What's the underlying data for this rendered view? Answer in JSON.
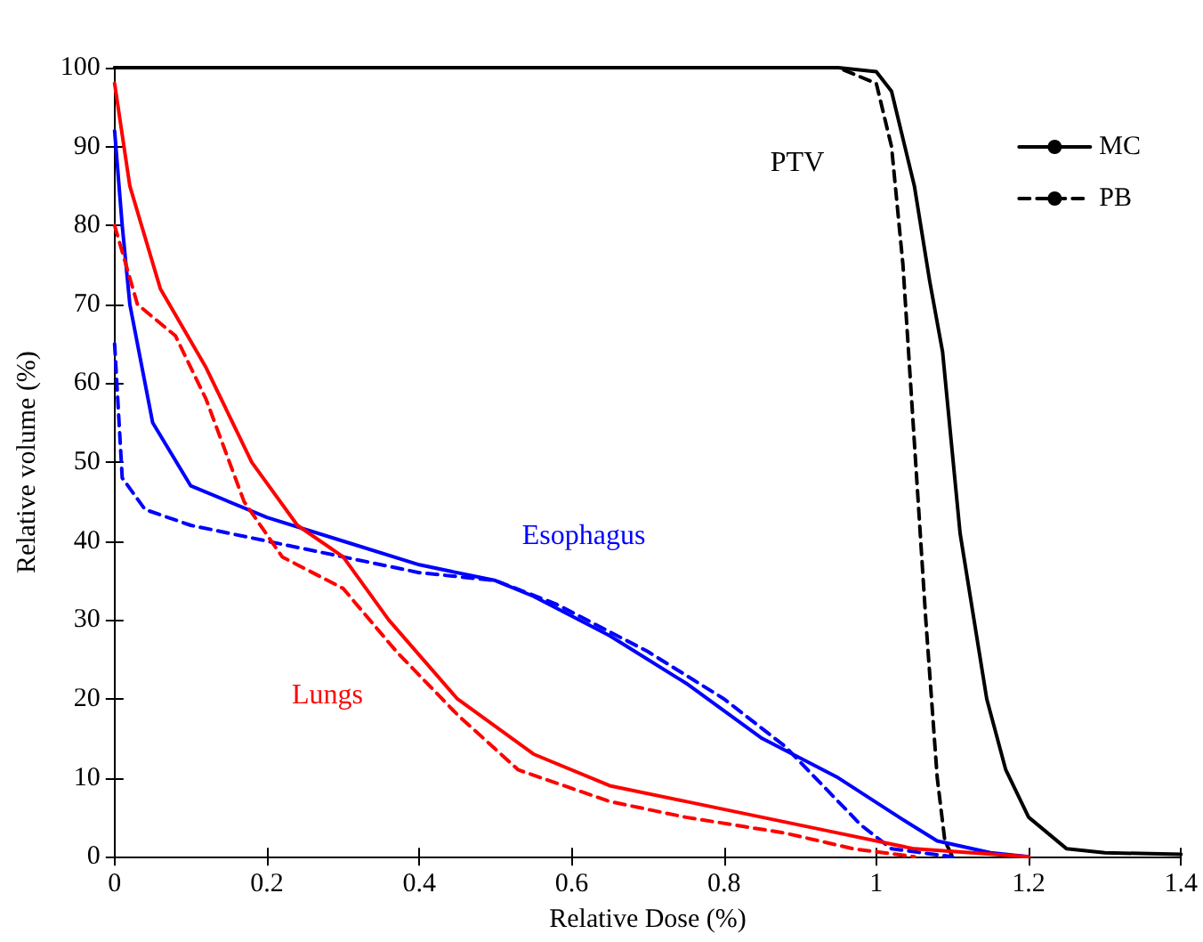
{
  "chart_data": {
    "type": "line",
    "xlabel": "Relative Dose (%)",
    "ylabel": "Relative volume (%)",
    "xlim": [
      0,
      1.4
    ],
    "xticks": [
      0,
      0.2,
      0.4,
      0.6,
      0.8,
      1,
      1.2,
      1.4
    ],
    "ylim": [
      0,
      100
    ],
    "yticks": [
      0,
      10,
      20,
      30,
      40,
      50,
      60,
      70,
      80,
      90,
      100
    ],
    "grid": false,
    "legend": "top right",
    "marker": "none",
    "series": [
      {
        "name": "MC",
        "color": "#000000",
        "line_style": "solid",
        "x": [
          0,
          0.5,
          0.95,
          1.0,
          1.02,
          1.05,
          1.07,
          1.087,
          1.11,
          1.145,
          1.17,
          1.2,
          1.25,
          1.3,
          1.4
        ],
        "values": [
          100,
          100,
          100,
          99.5,
          97,
          85,
          73,
          64,
          41,
          20,
          11,
          5,
          1,
          0.5,
          0.3
        ]
      },
      {
        "name": "PB",
        "color": "#000000",
        "line_style": "dashed",
        "x": [
          0,
          0.5,
          0.95,
          1.0,
          1.02,
          1.035,
          1.045,
          1.055,
          1.065,
          1.08,
          1.09,
          1.1
        ],
        "values": [
          100,
          100,
          100,
          98,
          90,
          75,
          60,
          45,
          30,
          10,
          2,
          0
        ]
      },
      {
        "color": "#0000ff",
        "line_style": "solid",
        "x": [
          0,
          0.01,
          0.02,
          0.05,
          0.1,
          0.2,
          0.3,
          0.4,
          0.5,
          0.55,
          0.65,
          0.75,
          0.85,
          0.95,
          1.03,
          1.08,
          1.15,
          1.2
        ],
        "values": [
          92,
          80,
          70,
          55,
          47,
          43,
          40,
          37,
          35,
          33,
          28,
          22,
          15,
          10,
          5,
          2,
          0.5,
          0
        ]
      },
      {
        "color": "#0000ff",
        "line_style": "dashed",
        "x": [
          0,
          0.01,
          0.04,
          0.1,
          0.2,
          0.3,
          0.4,
          0.5,
          0.58,
          0.7,
          0.8,
          0.88,
          0.93,
          0.98,
          1.02,
          1.1
        ],
        "values": [
          65,
          48,
          44,
          42,
          40,
          38,
          36,
          35,
          32,
          26,
          20,
          14,
          9,
          4,
          1,
          0
        ]
      },
      {
        "color": "#ff0000",
        "line_style": "solid",
        "x": [
          0,
          0.02,
          0.06,
          0.12,
          0.18,
          0.24,
          0.3,
          0.36,
          0.45,
          0.55,
          0.65,
          0.75,
          0.85,
          0.95,
          1.05,
          1.2
        ],
        "values": [
          98,
          85,
          72,
          62,
          50,
          42,
          38,
          30,
          20,
          13,
          9,
          7,
          5,
          3,
          1,
          0
        ]
      },
      {
        "color": "#ff0000",
        "line_style": "dashed",
        "x": [
          0,
          0.03,
          0.08,
          0.12,
          0.17,
          0.22,
          0.3,
          0.37,
          0.45,
          0.53,
          0.65,
          0.75,
          0.88,
          0.97,
          1.05
        ],
        "values": [
          80,
          70,
          66,
          58,
          45,
          38,
          34,
          26,
          18,
          11,
          7,
          5,
          3,
          1,
          0
        ]
      }
    ],
    "annotations": [
      "PTV",
      "Esophagus",
      "Lungs"
    ]
  }
}
